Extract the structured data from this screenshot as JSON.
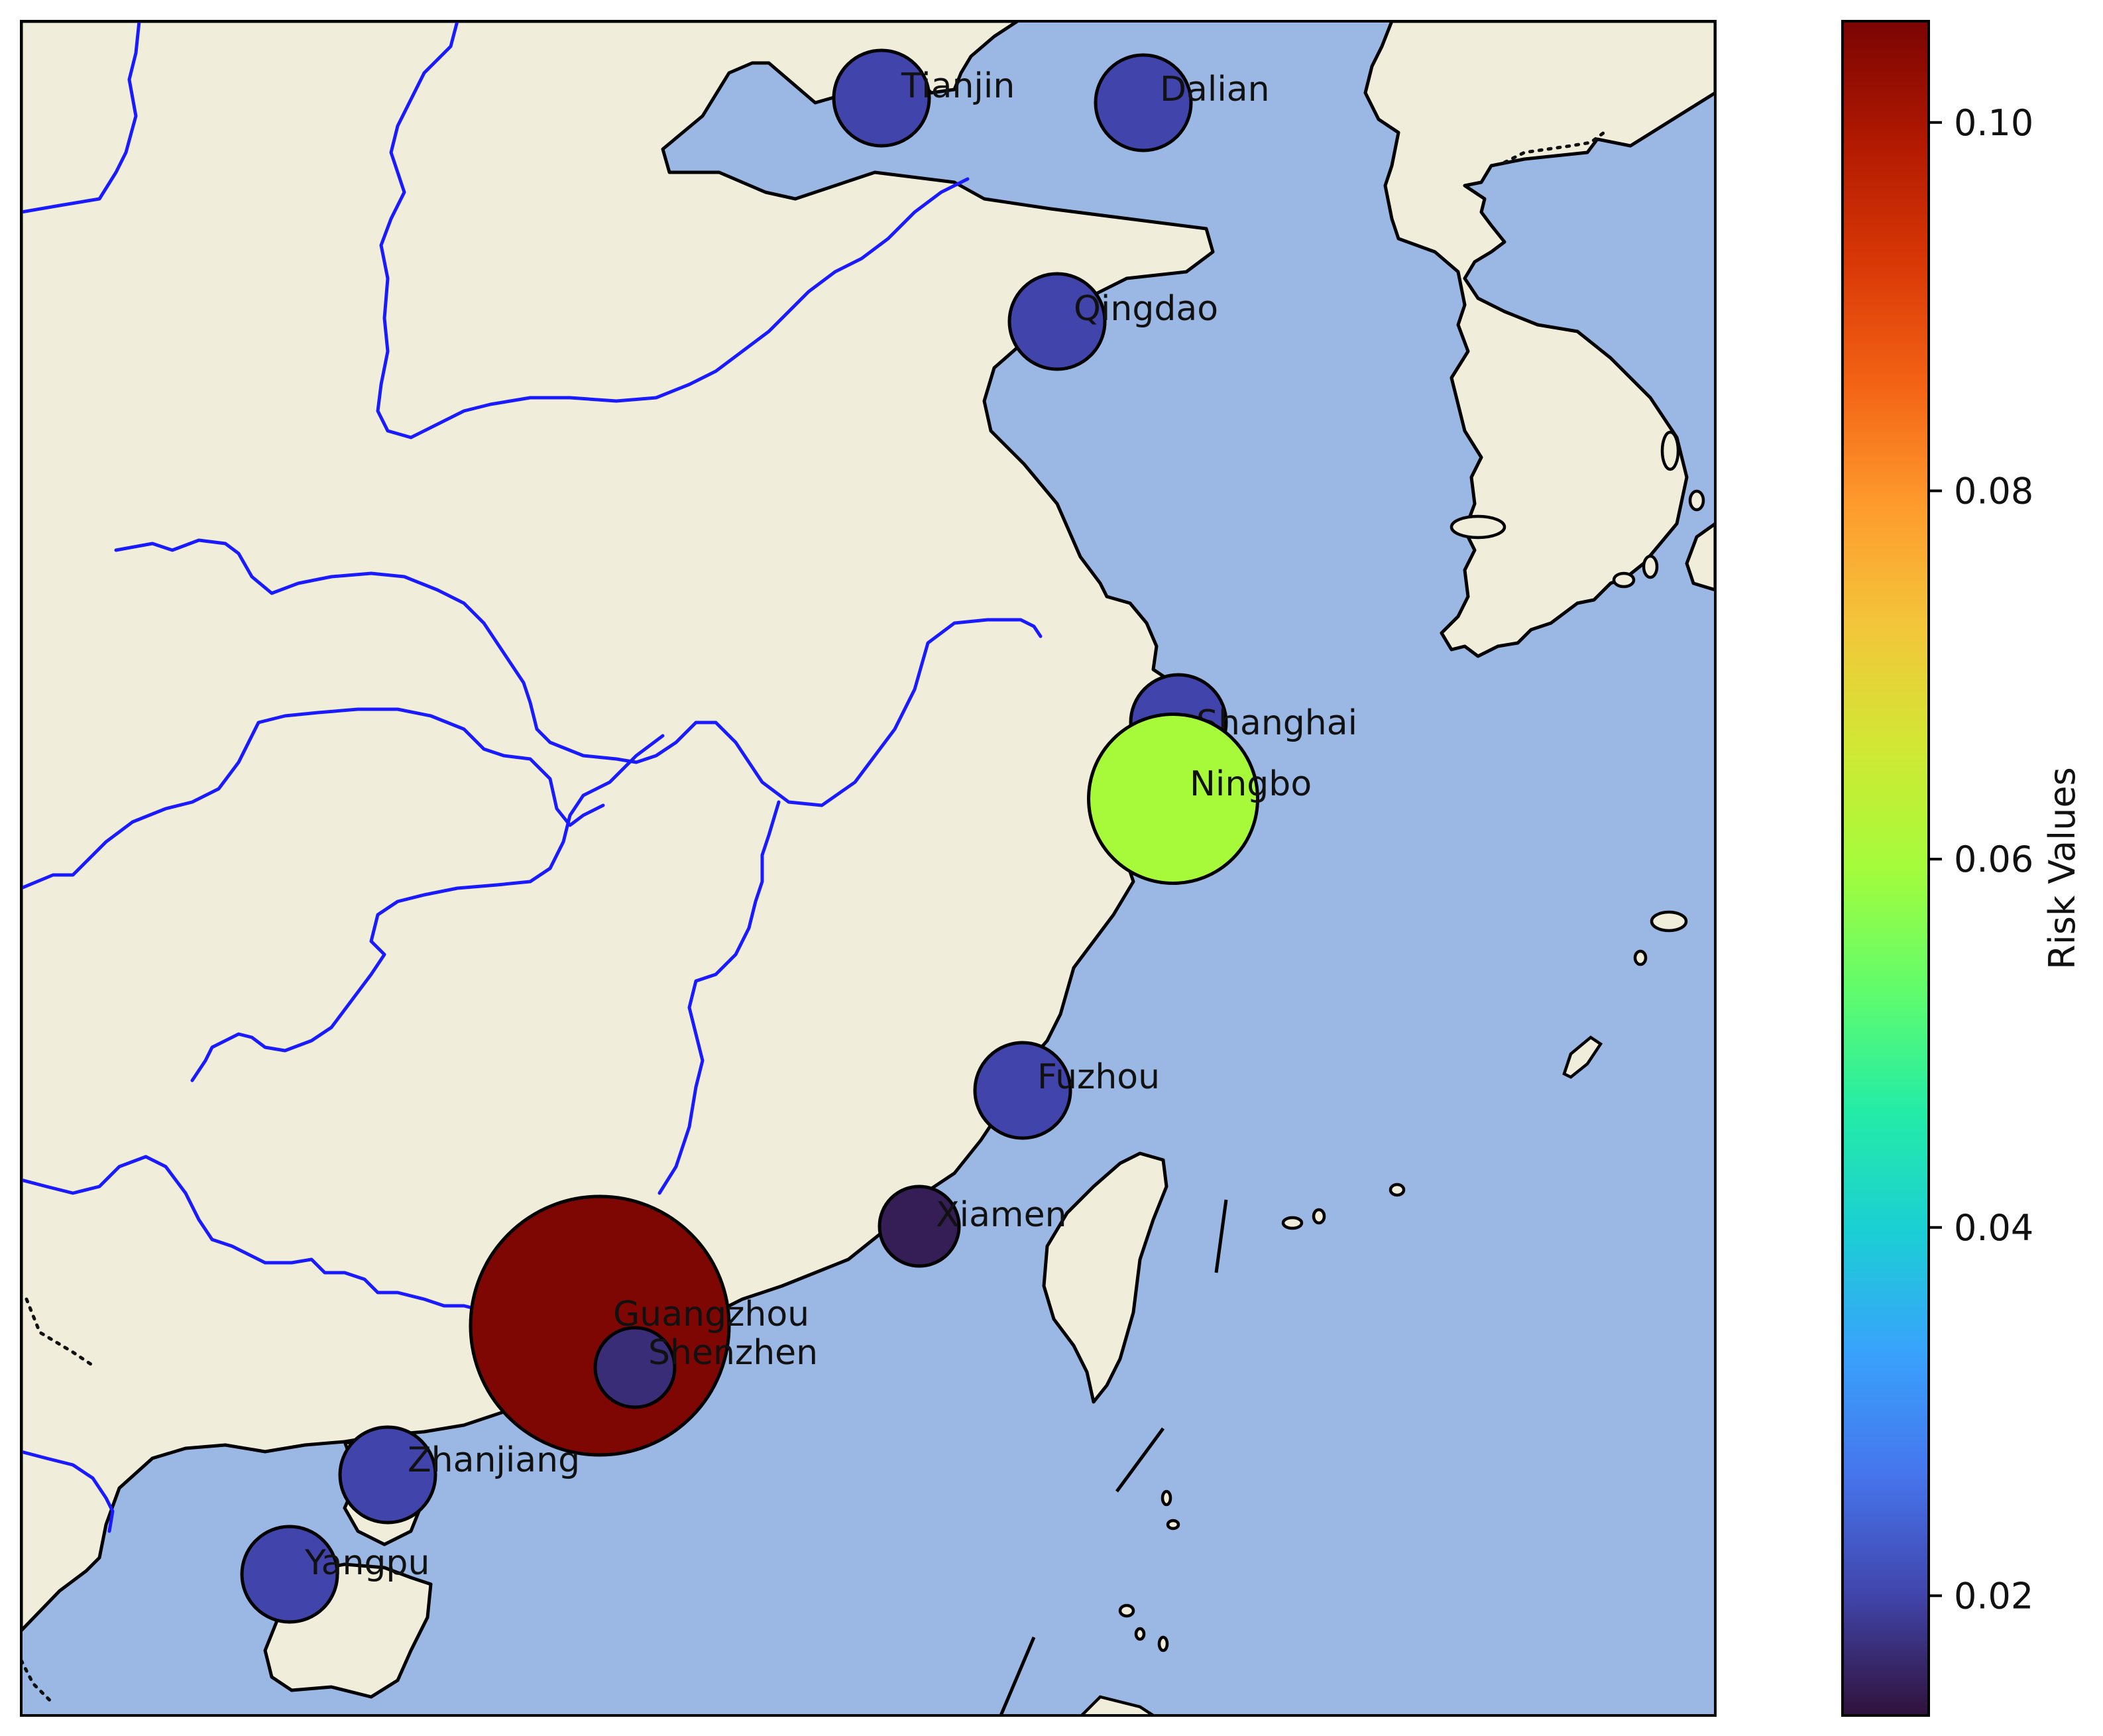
{
  "map": {
    "region": "East China coast",
    "colors": {
      "ocean": "#9ab8e3",
      "land": "#f0eedb",
      "river": "#1a1aff"
    }
  },
  "ports": [
    {
      "name": "Tianjin",
      "risk": 0.02,
      "label": "Tianjin"
    },
    {
      "name": "Dalian",
      "risk": 0.02,
      "label": "Dalian"
    },
    {
      "name": "Qingdao",
      "risk": 0.02,
      "label": "Qingdao"
    },
    {
      "name": "Shanghai",
      "risk": 0.02,
      "label": "Shanghai"
    },
    {
      "name": "Ningbo",
      "risk": 0.06,
      "label": "Ningbo"
    },
    {
      "name": "Fuzhou",
      "risk": 0.02,
      "label": "Fuzhou"
    },
    {
      "name": "Xiamen",
      "risk": 0.015,
      "label": "Xiamen"
    },
    {
      "name": "Guangzhou",
      "risk": 0.105,
      "label": "Guangzhou"
    },
    {
      "name": "Shenzhen",
      "risk": 0.017,
      "label": "Shenzhen"
    },
    {
      "name": "Zhanjiang",
      "risk": 0.02,
      "label": "Zhanjiang"
    },
    {
      "name": "Yangpu",
      "risk": 0.02,
      "label": "Yangpu"
    }
  ],
  "colorbar": {
    "title": "Risk Values",
    "colormap": "turbo",
    "min": 0.0135,
    "max": 0.1055,
    "ticks": [
      {
        "value": 0.1,
        "label": "0.10"
      },
      {
        "value": 0.08,
        "label": "0.08"
      },
      {
        "value": 0.06,
        "label": "0.06"
      },
      {
        "value": 0.04,
        "label": "0.04"
      },
      {
        "value": 0.02,
        "label": "0.02"
      }
    ],
    "stops": [
      "#30123b",
      "#4145ab",
      "#4675ed",
      "#39a2fc",
      "#1bcfd4",
      "#24eca6",
      "#61fc6c",
      "#a4fc3b",
      "#d1e834",
      "#f3c63a",
      "#fe9b2d",
      "#f36315",
      "#d93806",
      "#b11901",
      "#7a0403"
    ]
  }
}
